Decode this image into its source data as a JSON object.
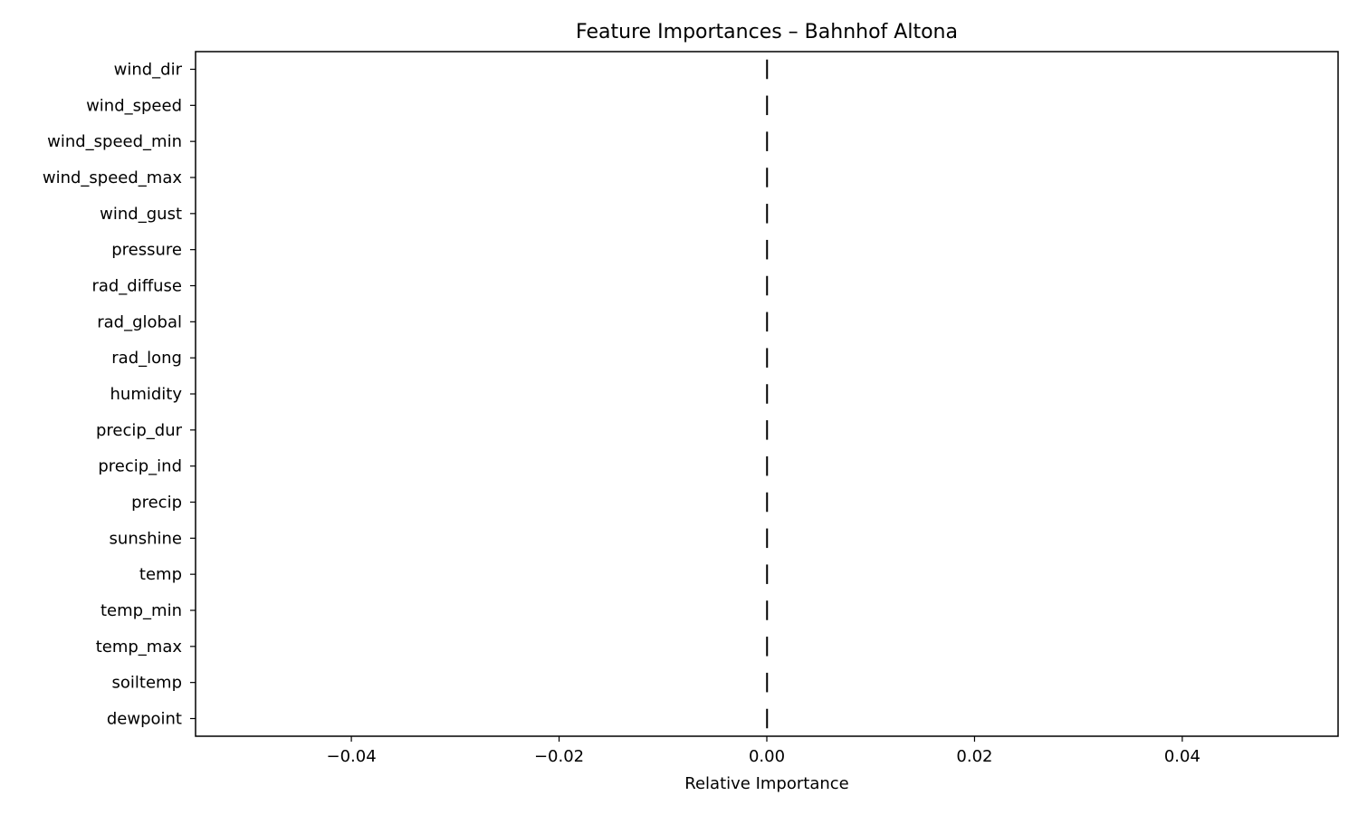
{
  "chart_data": {
    "type": "bar",
    "orientation": "horizontal",
    "title": "Feature Importances – Bahnhof Altona",
    "xlabel": "Relative Importance",
    "ylabel": "",
    "xlim": [
      -0.055,
      0.055
    ],
    "xticks": [
      -0.04,
      -0.02,
      0.0,
      0.02,
      0.04
    ],
    "xtick_labels": [
      "−0.04",
      "−0.02",
      "0.00",
      "0.02",
      "0.04"
    ],
    "grid": false,
    "legend": "none",
    "bar_color": "#1f77b4",
    "categories": [
      "wind_dir",
      "wind_speed",
      "wind_speed_min",
      "wind_speed_max",
      "wind_gust",
      "pressure",
      "rad_diffuse",
      "rad_global",
      "rad_long",
      "humidity",
      "precip_dur",
      "precip_ind",
      "precip",
      "sunshine",
      "temp",
      "temp_min",
      "temp_max",
      "soiltemp",
      "dewpoint"
    ],
    "values": [
      0,
      0,
      0,
      0,
      0,
      0,
      0,
      0,
      0,
      0,
      0,
      0,
      0,
      0,
      0,
      0,
      0,
      0,
      0
    ]
  }
}
